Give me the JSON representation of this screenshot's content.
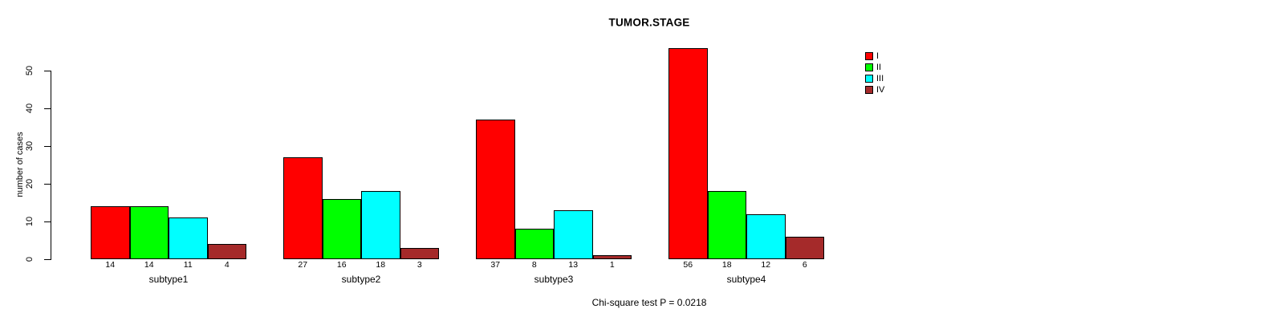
{
  "title": "TUMOR.STAGE",
  "ylabel": "number of cases",
  "caption": "Chi-square test P = 0.0218",
  "chart_data": {
    "type": "bar",
    "grouped": true,
    "title": "TUMOR.STAGE",
    "xlabel": "",
    "ylabel": "number of cases",
    "categories": [
      "subtype1",
      "subtype2",
      "subtype3",
      "subtype4"
    ],
    "series": [
      {
        "name": "I",
        "color": "#FF0000",
        "values": [
          14,
          27,
          37,
          56
        ]
      },
      {
        "name": "II",
        "color": "#00FF00",
        "values": [
          14,
          16,
          8,
          18
        ]
      },
      {
        "name": "III",
        "color": "#00FFFF",
        "values": [
          11,
          18,
          13,
          12
        ]
      },
      {
        "name": "IV",
        "color": "#A52A2A",
        "values": [
          4,
          3,
          1,
          6
        ]
      }
    ],
    "yticks": [
      0,
      10,
      20,
      30,
      40,
      50
    ],
    "ylim": [
      0,
      56
    ],
    "bar_value_labels_shown": true,
    "grid": false,
    "legend_position": "top-right",
    "annotation": "Chi-square test P = 0.0218"
  }
}
